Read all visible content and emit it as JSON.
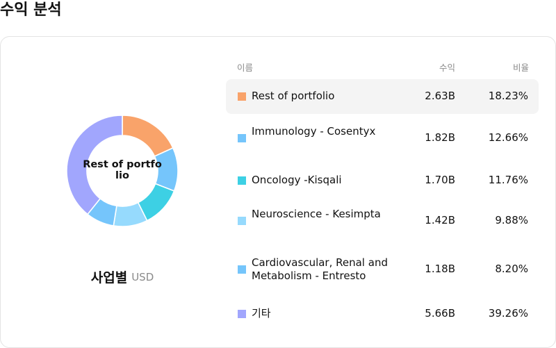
{
  "page": {
    "title": "수익 분석"
  },
  "chart_caption": {
    "label": "사업별",
    "unit": "USD"
  },
  "table_header": {
    "name": "이름",
    "value": "수익",
    "percent": "비율"
  },
  "donut_center_label": "Rest of portfolio",
  "rows": [
    {
      "name": "Rest of portfolio",
      "value": "2.63B",
      "percent": "18.23%",
      "color": "#f9a36a"
    },
    {
      "name": "Immunology - Cosentyx",
      "value": "1.82B",
      "percent": "12.66%",
      "color": "#75c5fb"
    },
    {
      "name": "Oncology -Kisqali",
      "value": "1.70B",
      "percent": "11.76%",
      "color": "#3dd0e4"
    },
    {
      "name": "Neuroscience - Kesimpta",
      "value": "1.42B",
      "percent": "9.88%",
      "color": "#96dafd"
    },
    {
      "name": "Cardiovascular, Renal and Metabolism - Entresto",
      "value": "1.18B",
      "percent": "8.20%",
      "color": "#75c5fb"
    },
    {
      "name": "기타",
      "value": "5.66B",
      "percent": "39.26%",
      "color": "#a1a6fd"
    }
  ],
  "chart_data": {
    "type": "pie",
    "subtype": "donut",
    "title": "",
    "categories": [
      "Rest of portfolio",
      "Immunology - Cosentyx",
      "Oncology -Kisqali",
      "Neuroscience - Kesimpta",
      "Cardiovascular, Renal and Metabolism - Entresto",
      "기타"
    ],
    "values": [
      18.23,
      12.66,
      11.76,
      9.88,
      8.2,
      39.26
    ],
    "revenue_usd": [
      "2.63B",
      "1.82B",
      "1.70B",
      "1.42B",
      "1.18B",
      "5.66B"
    ],
    "colors": [
      "#f9a36a",
      "#75c5fb",
      "#3dd0e4",
      "#96dafd",
      "#75c5fb",
      "#a1a6fd"
    ],
    "highlighted": "Rest of portfolio",
    "legend": "right-table"
  }
}
